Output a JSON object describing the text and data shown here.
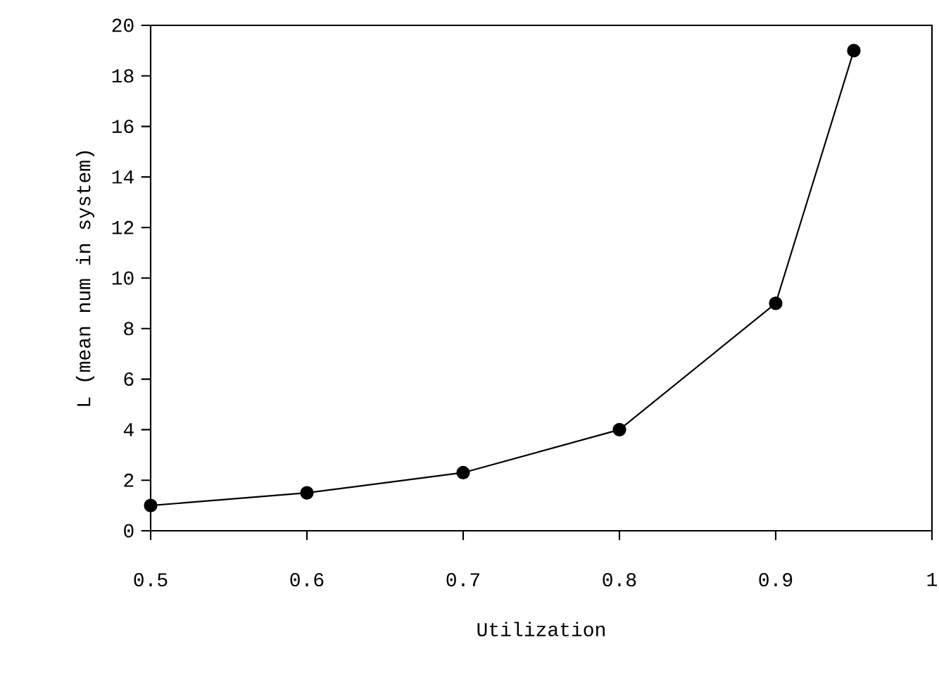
{
  "chart_data": {
    "type": "line",
    "xlabel": "Utilization",
    "ylabel": "L (mean num in system)",
    "x": [
      0.5,
      0.6,
      0.7,
      0.8,
      0.9,
      0.95
    ],
    "series": [
      {
        "color": "#000000",
        "values": [
          1,
          1.5,
          2.3,
          4,
          9,
          19
        ]
      }
    ],
    "xlim": [
      0.5,
      1
    ],
    "ylim": [
      0,
      20
    ],
    "xticks": [
      0.5,
      0.6,
      0.7,
      0.8,
      0.9,
      1
    ],
    "yticks": [
      0,
      2,
      4,
      6,
      8,
      10,
      12,
      14,
      16,
      18,
      20
    ],
    "marker": "circle",
    "line_style": "solid"
  }
}
